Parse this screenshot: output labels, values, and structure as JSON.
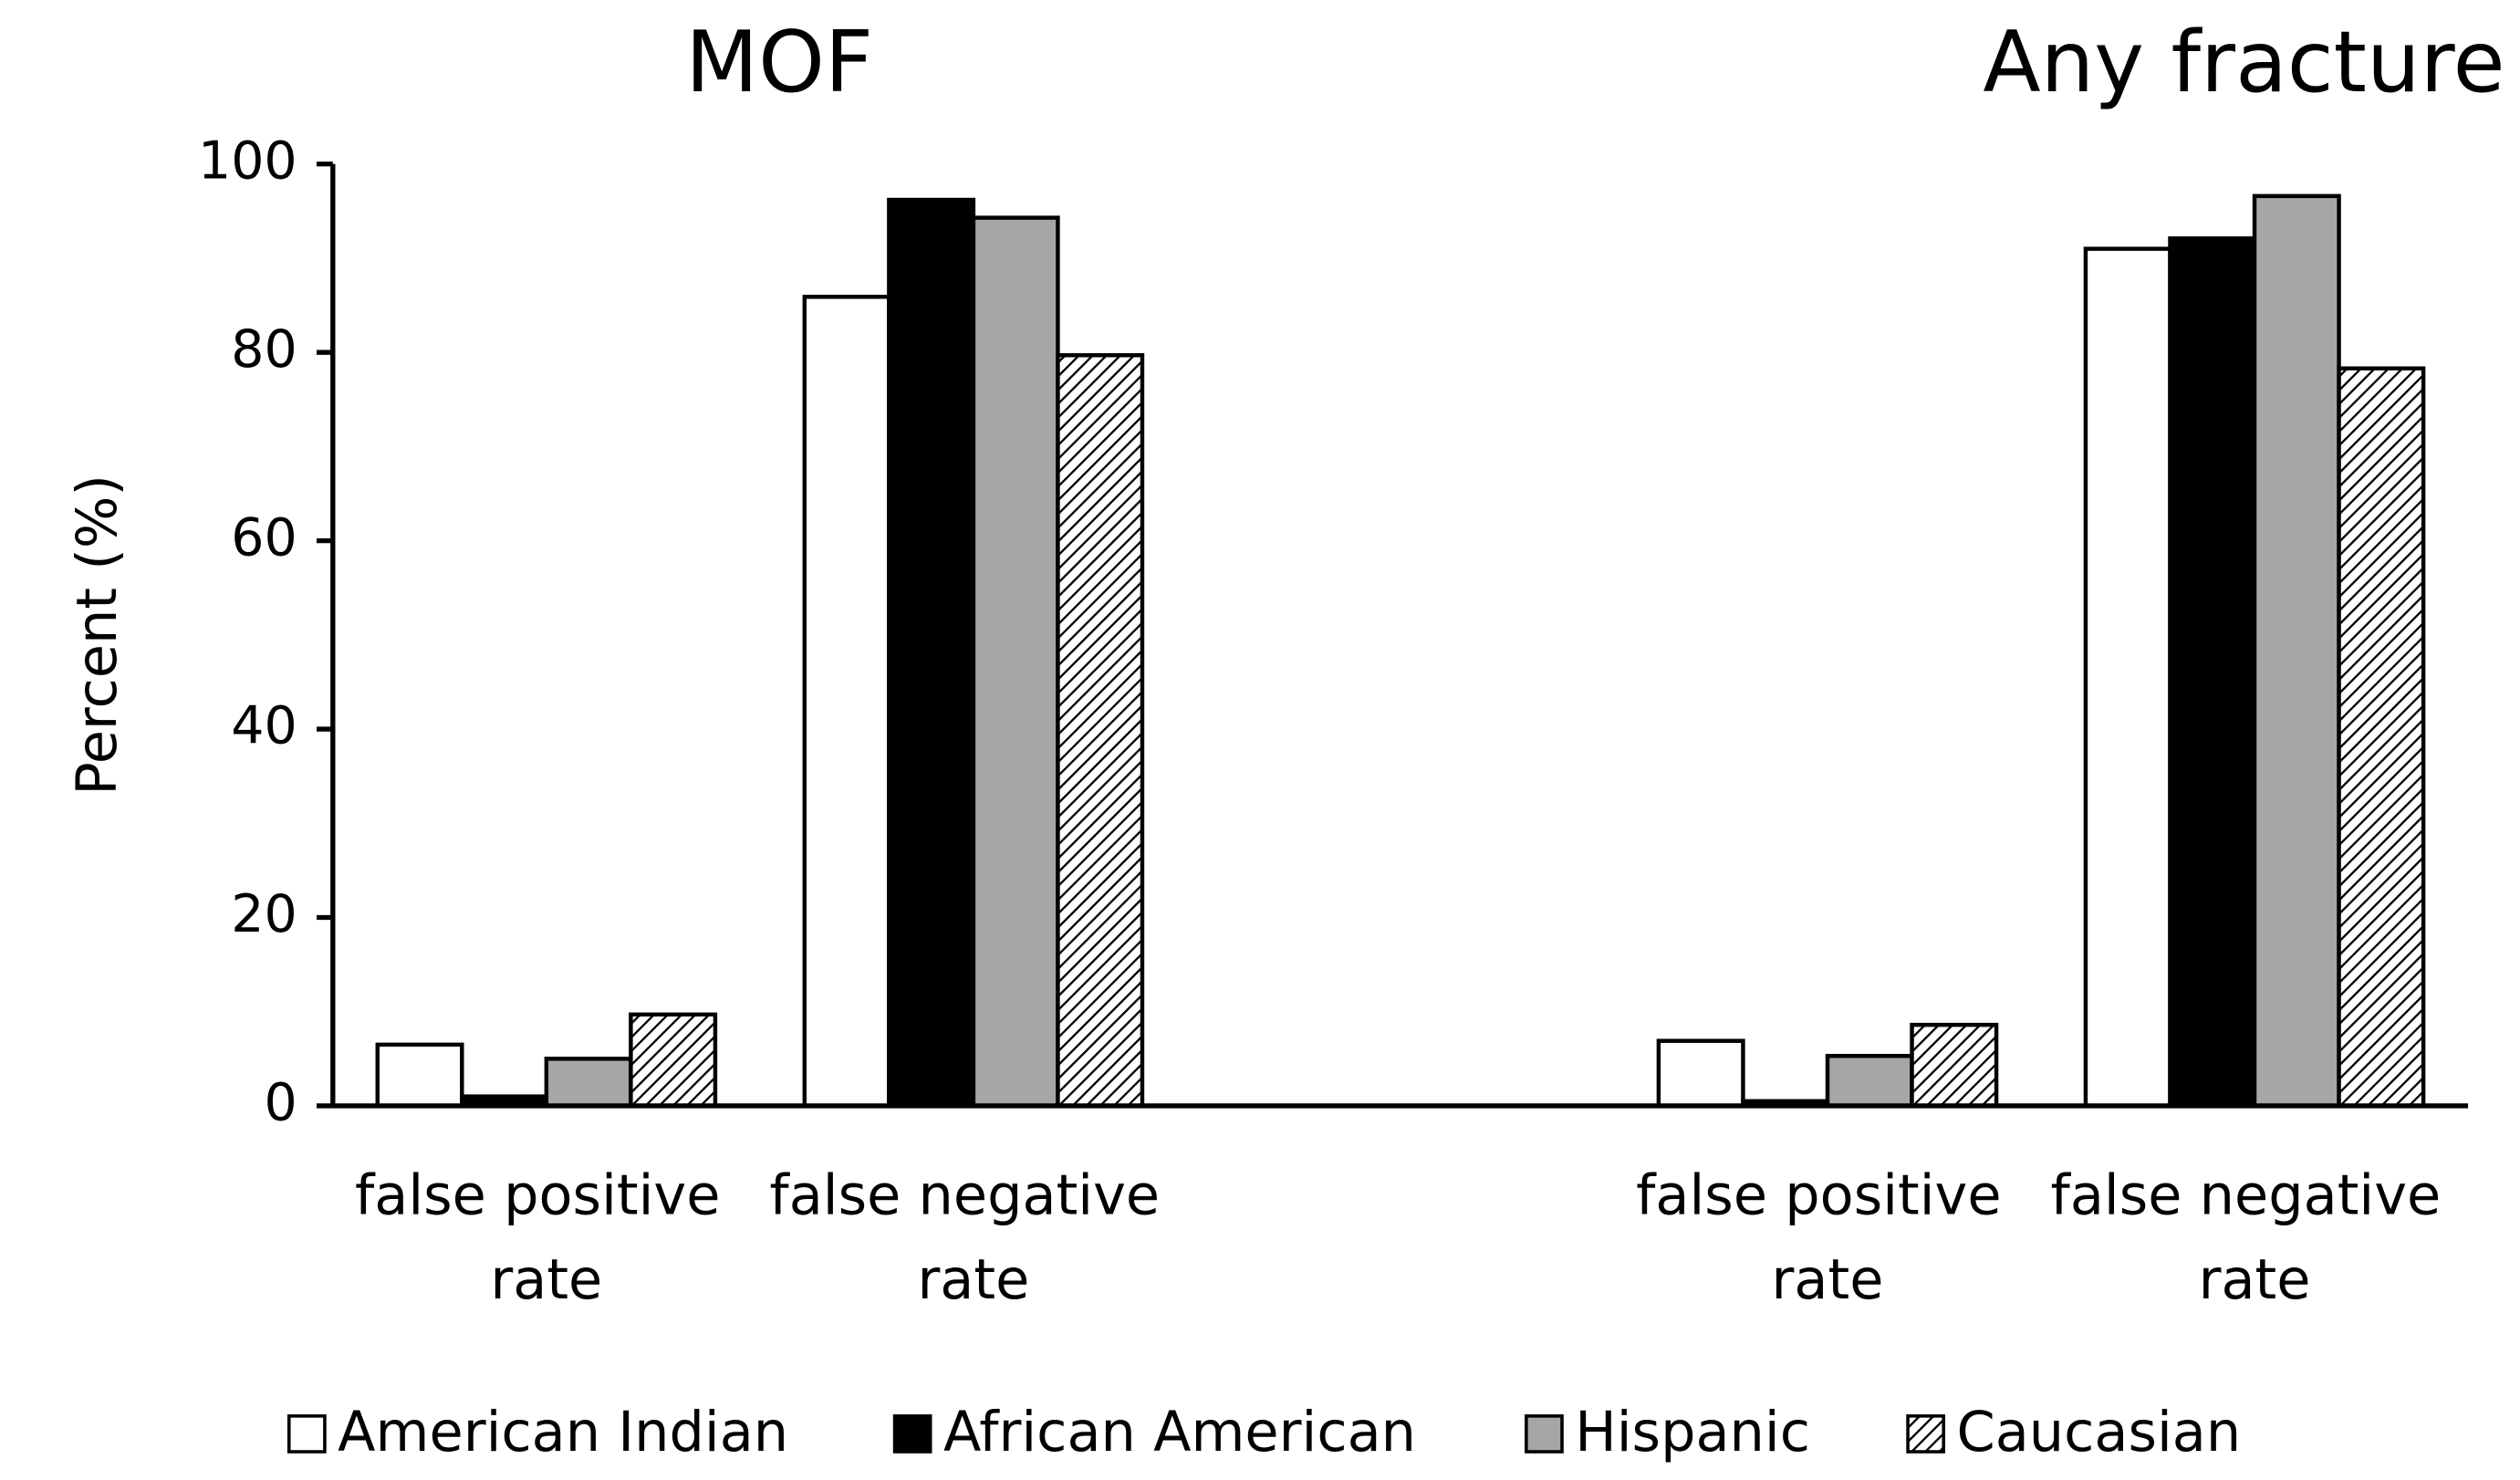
{
  "chart_data": {
    "type": "bar",
    "annotations": [
      "MOF",
      "Any fracture"
    ],
    "ylabel": "Percent (%)",
    "categories": [
      "false positive rate",
      "false negative rate",
      null,
      "false positive rate",
      "false negative rate"
    ],
    "series": [
      {
        "name": "American Indian",
        "color": "#ffffff",
        "values": [
          6.5,
          85.9,
          null,
          6.9,
          91.0
        ]
      },
      {
        "name": "African American",
        "color": "#000000",
        "values": [
          1.0,
          96.2,
          null,
          0.5,
          92.1
        ]
      },
      {
        "name": "Hispanic",
        "color": "#a6a6a6",
        "values": [
          5.0,
          94.3,
          null,
          5.3,
          96.6
        ]
      },
      {
        "name": "Caucasian",
        "color": "#ffffff",
        "pattern": "hatch",
        "values": [
          9.7,
          79.7,
          null,
          8.6,
          78.3
        ]
      }
    ],
    "ylim": [
      0,
      100
    ],
    "yticks": [
      0,
      20,
      40,
      60,
      80,
      100
    ],
    "grid": false,
    "legend": "bottom"
  }
}
